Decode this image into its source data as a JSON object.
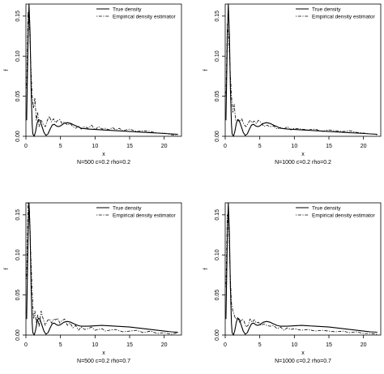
{
  "chart_data": [
    {
      "type": "line",
      "xlabel": "x",
      "ylabel": "f",
      "caption": "N=500 c=0.2 rho=0.2",
      "xlim": [
        0,
        22.5
      ],
      "ylim": [
        0,
        0.165
      ],
      "xticks": [
        0,
        5,
        10,
        15,
        20
      ],
      "yticks": [
        0.0,
        0.05,
        0.1,
        0.15
      ],
      "legend_position": "top-right",
      "series": [
        {
          "name": "True density",
          "style": "solid",
          "x": [
            0.1,
            0.3,
            0.45,
            0.6,
            0.75,
            0.9,
            1.0,
            1.2,
            1.4,
            1.6,
            1.8,
            2.0,
            2.3,
            2.6,
            2.9,
            3.2,
            3.5,
            3.8,
            4.1,
            4.4,
            4.7,
            5.0,
            5.5,
            6.0,
            6.5,
            7.0,
            7.5,
            8.0,
            9.0,
            10.0,
            11.0,
            12.0,
            13.0,
            14.0,
            15.0,
            16.0,
            17.0,
            18.0,
            19.0,
            20.0,
            21.0,
            22.0
          ],
          "y": [
            0.02,
            0.12,
            0.165,
            0.13,
            0.06,
            0.015,
            0.003,
            0.0,
            0.006,
            0.016,
            0.021,
            0.02,
            0.013,
            0.005,
            0.001,
            0.003,
            0.009,
            0.014,
            0.015,
            0.013,
            0.012,
            0.013,
            0.016,
            0.017,
            0.016,
            0.014,
            0.012,
            0.01,
            0.009,
            0.0085,
            0.008,
            0.0075,
            0.007,
            0.0065,
            0.006,
            0.0055,
            0.005,
            0.0045,
            0.004,
            0.0035,
            0.003,
            0.0025
          ]
        },
        {
          "name": "Empirical density estimator",
          "style": "dotdash",
          "x": [
            0.1,
            0.3,
            0.5,
            0.7,
            0.9,
            1.1,
            1.3,
            1.5,
            1.7,
            1.9,
            2.2,
            2.5,
            2.8,
            3.1,
            3.4,
            3.7,
            4.0,
            4.3,
            4.6,
            4.9,
            5.2,
            5.6,
            6.0,
            6.4,
            6.8,
            7.2,
            7.6,
            8.0,
            8.5,
            9.0,
            9.5,
            10.0,
            10.5,
            11.0,
            11.5,
            12.0,
            12.5,
            13.0,
            13.5,
            14.0,
            15.0,
            16.0,
            17.0,
            18.0,
            19.0,
            20.0,
            21.0,
            22.0
          ],
          "y": [
            0.06,
            0.155,
            0.14,
            0.09,
            0.05,
            0.035,
            0.048,
            0.02,
            0.03,
            0.012,
            0.02,
            0.015,
            0.012,
            0.02,
            0.025,
            0.018,
            0.022,
            0.017,
            0.02,
            0.021,
            0.016,
            0.018,
            0.014,
            0.016,
            0.012,
            0.01,
            0.013,
            0.009,
            0.012,
            0.01,
            0.014,
            0.008,
            0.012,
            0.009,
            0.01,
            0.008,
            0.011,
            0.008,
            0.01,
            0.007,
            0.009,
            0.006,
            0.007,
            0.006,
            0.004,
            0.004,
            0.002,
            0.001
          ]
        }
      ]
    },
    {
      "type": "line",
      "xlabel": "x",
      "ylabel": "f",
      "caption": "N=1000 c=0.2 rho=0.2",
      "xlim": [
        0,
        22.5
      ],
      "ylim": [
        0,
        0.165
      ],
      "xticks": [
        0,
        5,
        10,
        15,
        20
      ],
      "yticks": [
        0.0,
        0.05,
        0.1,
        0.15
      ],
      "legend_position": "top-right",
      "series": [
        {
          "name": "True density",
          "style": "solid",
          "x": [
            0.1,
            0.3,
            0.45,
            0.6,
            0.75,
            0.9,
            1.0,
            1.2,
            1.4,
            1.6,
            1.8,
            2.0,
            2.3,
            2.6,
            2.9,
            3.2,
            3.5,
            3.8,
            4.1,
            4.4,
            4.7,
            5.0,
            5.5,
            6.0,
            6.5,
            7.0,
            7.5,
            8.0,
            9.0,
            10.0,
            11.0,
            12.0,
            13.0,
            14.0,
            15.0,
            16.0,
            17.0,
            18.0,
            19.0,
            20.0,
            21.0,
            22.0
          ],
          "y": [
            0.02,
            0.12,
            0.165,
            0.13,
            0.06,
            0.015,
            0.003,
            0.0,
            0.006,
            0.016,
            0.021,
            0.02,
            0.013,
            0.005,
            0.001,
            0.003,
            0.009,
            0.014,
            0.015,
            0.013,
            0.012,
            0.013,
            0.016,
            0.017,
            0.016,
            0.014,
            0.012,
            0.01,
            0.009,
            0.0085,
            0.008,
            0.0075,
            0.007,
            0.0065,
            0.006,
            0.0055,
            0.005,
            0.0045,
            0.004,
            0.0035,
            0.003,
            0.0025
          ]
        },
        {
          "name": "Empirical density estimator",
          "style": "dotdash",
          "x": [
            0.1,
            0.3,
            0.5,
            0.7,
            0.9,
            1.1,
            1.3,
            1.5,
            1.8,
            2.1,
            2.4,
            2.7,
            3.0,
            3.3,
            3.6,
            3.9,
            4.2,
            4.5,
            4.8,
            5.2,
            5.6,
            6.0,
            6.5,
            7.0,
            7.5,
            8.0,
            8.5,
            9.0,
            9.5,
            10.0,
            11.0,
            12.0,
            13.0,
            14.0,
            15.0,
            16.0,
            17.0,
            18.0,
            19.0,
            20.0,
            21.0,
            22.0
          ],
          "y": [
            0.05,
            0.14,
            0.125,
            0.085,
            0.05,
            0.03,
            0.04,
            0.02,
            0.02,
            0.018,
            0.022,
            0.015,
            0.012,
            0.016,
            0.02,
            0.017,
            0.019,
            0.016,
            0.02,
            0.017,
            0.012,
            0.014,
            0.012,
            0.013,
            0.009,
            0.011,
            0.009,
            0.012,
            0.008,
            0.01,
            0.009,
            0.008,
            0.009,
            0.006,
            0.008,
            0.007,
            0.006,
            0.007,
            0.005,
            0.004,
            0.003,
            0.002
          ]
        }
      ]
    },
    {
      "type": "line",
      "xlabel": "x",
      "ylabel": "f",
      "caption": "N=500 c=0.2 rho=0.7",
      "xlim": [
        0,
        22.5
      ],
      "ylim": [
        0,
        0.165
      ],
      "xticks": [
        0,
        5,
        10,
        15,
        20
      ],
      "yticks": [
        0.0,
        0.05,
        0.1,
        0.15
      ],
      "legend_position": "top-right",
      "series": [
        {
          "name": "True density",
          "style": "solid",
          "x": [
            0.1,
            0.3,
            0.45,
            0.6,
            0.75,
            0.9,
            1.0,
            1.2,
            1.4,
            1.6,
            1.8,
            2.0,
            2.3,
            2.6,
            2.9,
            3.2,
            3.5,
            3.8,
            4.1,
            4.4,
            4.7,
            5.0,
            5.5,
            6.0,
            6.5,
            7.0,
            7.5,
            8.0,
            9.0,
            10.0,
            11.0,
            12.0,
            13.0,
            14.0,
            15.0,
            16.0,
            17.0,
            18.0,
            19.0,
            20.0,
            21.0,
            22.0
          ],
          "y": [
            0.02,
            0.12,
            0.165,
            0.13,
            0.06,
            0.015,
            0.003,
            0.0,
            0.006,
            0.016,
            0.021,
            0.02,
            0.013,
            0.005,
            0.001,
            0.003,
            0.009,
            0.014,
            0.015,
            0.013,
            0.012,
            0.013,
            0.016,
            0.017,
            0.016,
            0.014,
            0.012,
            0.011,
            0.011,
            0.0115,
            0.012,
            0.0115,
            0.011,
            0.0105,
            0.01,
            0.009,
            0.008,
            0.007,
            0.006,
            0.005,
            0.004,
            0.0035
          ]
        },
        {
          "name": "Empirical density estimator",
          "style": "dotdash",
          "x": [
            0.1,
            0.3,
            0.5,
            0.7,
            0.9,
            1.1,
            1.3,
            1.5,
            1.7,
            1.9,
            2.2,
            2.5,
            2.8,
            3.1,
            3.4,
            3.7,
            4.0,
            4.3,
            4.6,
            4.9,
            5.2,
            5.6,
            6.0,
            6.4,
            6.8,
            7.2,
            7.6,
            8.0,
            8.5,
            9.0,
            9.5,
            10.0,
            10.5,
            11.0,
            11.5,
            12.0,
            13.0,
            14.0,
            15.0,
            16.0,
            17.0,
            18.0,
            19.0,
            20.0,
            21.0,
            22.0
          ],
          "y": [
            0.07,
            0.17,
            0.16,
            0.1,
            0.055,
            0.02,
            0.03,
            0.015,
            0.025,
            0.01,
            0.03,
            0.02,
            0.012,
            0.018,
            0.02,
            0.015,
            0.02,
            0.019,
            0.021,
            0.015,
            0.018,
            0.02,
            0.012,
            0.015,
            0.009,
            0.012,
            0.006,
            0.01,
            0.007,
            0.008,
            0.01,
            0.006,
            0.007,
            0.008,
            0.005,
            0.006,
            0.007,
            0.004,
            0.005,
            0.006,
            0.003,
            0.005,
            0.002,
            0.003,
            0.001,
            0.003
          ]
        }
      ]
    },
    {
      "type": "line",
      "xlabel": "x",
      "ylabel": "f",
      "caption": "N=1000 c=0.2 rho=0.7",
      "xlim": [
        0,
        22.5
      ],
      "ylim": [
        0,
        0.165
      ],
      "xticks": [
        0,
        5,
        10,
        15,
        20
      ],
      "yticks": [
        0.0,
        0.05,
        0.1,
        0.15
      ],
      "legend_position": "top-right",
      "series": [
        {
          "name": "True density",
          "style": "solid",
          "x": [
            0.1,
            0.3,
            0.45,
            0.6,
            0.75,
            0.9,
            1.0,
            1.2,
            1.4,
            1.6,
            1.8,
            2.0,
            2.3,
            2.6,
            2.9,
            3.2,
            3.5,
            3.8,
            4.1,
            4.4,
            4.7,
            5.0,
            5.5,
            6.0,
            6.5,
            7.0,
            7.5,
            8.0,
            9.0,
            10.0,
            11.0,
            12.0,
            13.0,
            14.0,
            15.0,
            16.0,
            17.0,
            18.0,
            19.0,
            20.0,
            21.0,
            22.0
          ],
          "y": [
            0.02,
            0.12,
            0.165,
            0.13,
            0.06,
            0.015,
            0.003,
            0.0,
            0.006,
            0.016,
            0.021,
            0.02,
            0.013,
            0.005,
            0.001,
            0.003,
            0.009,
            0.014,
            0.015,
            0.013,
            0.012,
            0.013,
            0.016,
            0.017,
            0.016,
            0.014,
            0.012,
            0.011,
            0.011,
            0.0115,
            0.012,
            0.0115,
            0.011,
            0.0105,
            0.01,
            0.009,
            0.008,
            0.007,
            0.006,
            0.005,
            0.004,
            0.0035
          ]
        },
        {
          "name": "Empirical density estimator",
          "style": "dotdash",
          "x": [
            0.1,
            0.3,
            0.5,
            0.7,
            0.9,
            1.1,
            1.3,
            1.5,
            1.8,
            2.1,
            2.4,
            2.7,
            3.0,
            3.3,
            3.6,
            3.9,
            4.2,
            4.5,
            4.8,
            5.2,
            5.6,
            6.0,
            6.5,
            7.0,
            7.5,
            8.0,
            8.5,
            9.0,
            9.5,
            10.0,
            11.0,
            12.0,
            13.0,
            14.0,
            15.0,
            16.0,
            17.0,
            18.0,
            19.0,
            20.0,
            21.0,
            22.0
          ],
          "y": [
            0.06,
            0.15,
            0.14,
            0.08,
            0.04,
            0.03,
            0.025,
            0.02,
            0.022,
            0.015,
            0.02,
            0.018,
            0.01,
            0.012,
            0.02,
            0.016,
            0.019,
            0.015,
            0.016,
            0.012,
            0.014,
            0.012,
            0.011,
            0.012,
            0.008,
            0.01,
            0.006,
            0.009,
            0.007,
            0.008,
            0.006,
            0.007,
            0.005,
            0.006,
            0.005,
            0.004,
            0.005,
            0.003,
            0.004,
            0.002,
            0.002,
            0.001
          ]
        }
      ]
    }
  ]
}
